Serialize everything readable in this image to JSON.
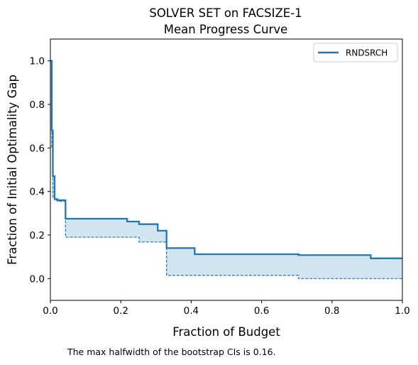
{
  "chart_data": {
    "type": "line",
    "title_line1": "SOLVER SET on FACSIZE-1",
    "title_line2": "Mean Progress Curve",
    "xlabel": "Fraction of Budget",
    "ylabel": "Fraction of Initial Optimality Gap",
    "xlim": [
      0.0,
      1.0
    ],
    "ylim": [
      -0.1,
      1.1
    ],
    "xticks": [
      0.0,
      0.2,
      0.4,
      0.6,
      0.8,
      1.0
    ],
    "xtick_labels": [
      "0.0",
      "0.2",
      "0.4",
      "0.6",
      "0.8",
      "1.0"
    ],
    "yticks": [
      0.0,
      0.2,
      0.4,
      0.6,
      0.8,
      1.0
    ],
    "ytick_labels": [
      "0.0",
      "0.2",
      "0.4",
      "0.6",
      "0.8",
      "1.0"
    ],
    "grid": false,
    "legend_position": "top-right",
    "series": [
      {
        "name": "RNDSRCH",
        "color": "#1f77b4",
        "step_x": [
          0.0,
          0.004,
          0.007,
          0.012,
          0.02,
          0.043,
          0.218,
          0.252,
          0.305,
          0.33,
          0.41,
          0.705,
          0.91,
          1.0
        ],
        "mean": [
          1.0,
          0.68,
          0.47,
          0.365,
          0.36,
          0.275,
          0.262,
          0.25,
          0.22,
          0.14,
          0.112,
          0.108,
          0.093,
          0.093
        ],
        "ci_lower": [
          1.0,
          0.6,
          0.37,
          0.36,
          0.355,
          0.19,
          0.19,
          0.168,
          0.168,
          0.015,
          0.015,
          0.0,
          0.0,
          0.0
        ]
      }
    ]
  },
  "note": "The max halfwidth of the bootstrap CIs is 0.16."
}
